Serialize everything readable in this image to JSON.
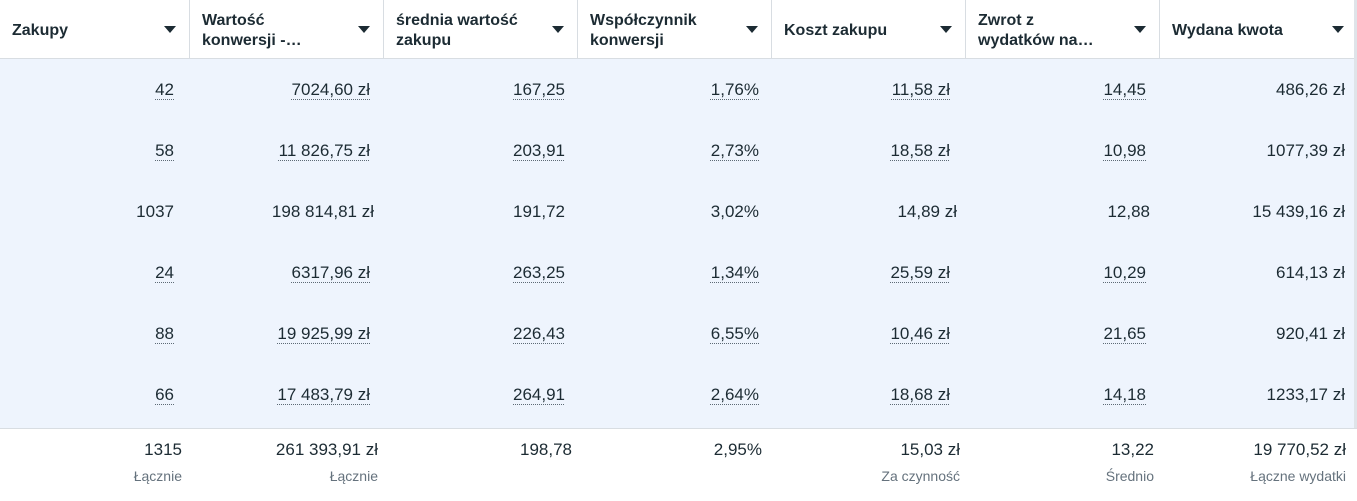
{
  "columns": [
    {
      "label": "Zakupy"
    },
    {
      "label": "Wartość\nkonwersji -…"
    },
    {
      "label": "średnia wartość\nzakupu"
    },
    {
      "label": "Współczynnik\nkonwersji"
    },
    {
      "label": "Koszt zakupu"
    },
    {
      "label": "Zwrot z\nwydatków na…"
    },
    {
      "label": "Wydana kwota"
    }
  ],
  "rows": [
    [
      "42",
      "7024,60 zł",
      "167,25",
      "1,76%",
      "11,58 zł",
      "14,45",
      "486,26 zł"
    ],
    [
      "58",
      "11 826,75 zł",
      "203,91",
      "2,73%",
      "18,58 zł",
      "10,98",
      "1077,39 zł"
    ],
    [
      "1037",
      "198 814,81 zł",
      "191,72",
      "3,02%",
      "14,89 zł",
      "12,88",
      "15 439,16 zł"
    ],
    [
      "24",
      "6317,96 zł",
      "263,25",
      "1,34%",
      "25,59 zł",
      "10,29",
      "614,13 zł"
    ],
    [
      "88",
      "19 925,99 zł",
      "226,43",
      "6,55%",
      "10,46 zł",
      "21,65",
      "920,41 zł"
    ],
    [
      "66",
      "17 483,79 zł",
      "264,91",
      "2,64%",
      "18,68 zł",
      "14,18",
      "1233,17 zł"
    ]
  ],
  "totals": [
    {
      "value": "1315",
      "label": "Łącznie"
    },
    {
      "value": "261 393,91 zł",
      "label": "Łącznie"
    },
    {
      "value": "198,78",
      "label": ""
    },
    {
      "value": "2,95%",
      "label": ""
    },
    {
      "value": "15,03 zł",
      "label": "Za czynność"
    },
    {
      "value": "13,22",
      "label": "Średnio"
    },
    {
      "value": "19 770,52 zł",
      "label": "Łączne wydatki"
    }
  ],
  "colors": {
    "row_background": "#eef4fd",
    "text": "#1c2b33",
    "muted_text": "#65727d",
    "border": "#d8dde2"
  },
  "icons": {
    "sort": "caret-down-icon"
  }
}
